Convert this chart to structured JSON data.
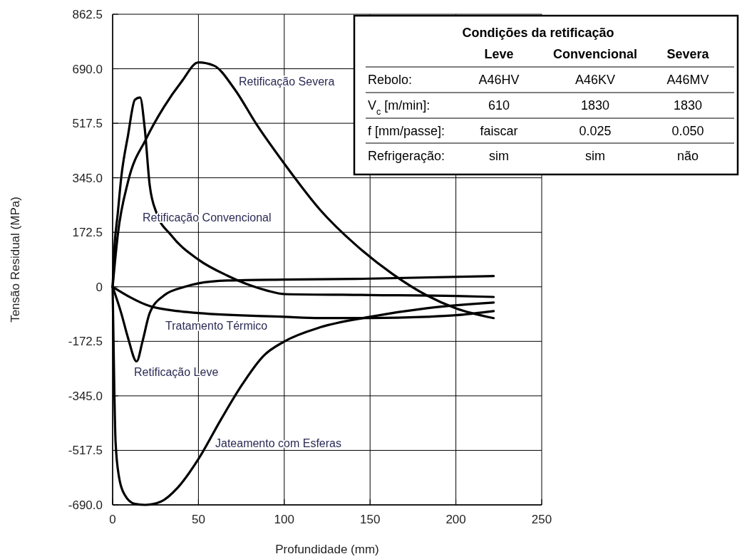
{
  "chart_data": [
    {
      "type": "line",
      "xlabel": "Profundidade (mm)",
      "ylabel": "Tensão Residual (MPa)",
      "xlim": [
        0,
        250
      ],
      "xticks": [
        0,
        50,
        100,
        150,
        200,
        250
      ],
      "ylim": [
        -690,
        862.5
      ],
      "yticks": [
        {
          "value": -690,
          "label": "-690.0"
        },
        -517.5,
        {
          "value": -345,
          "label": "-345.0"
        },
        -172.5,
        0,
        172.5,
        {
          "value": 345,
          "label": "345.0"
        },
        517.5,
        {
          "value": 690,
          "label": "690.0"
        },
        862.5
      ],
      "grid": true,
      "line_style": "solid",
      "marker": "none",
      "series": [
        {
          "name": "Retificação Severa",
          "color": "#000000",
          "x": [
            0,
            3,
            9,
            19.5,
            30,
            40,
            50,
            59,
            71,
            84,
            100,
            121,
            142,
            163,
            183,
            200,
            222
          ],
          "values": [
            0,
            164,
            333,
            468,
            570,
            648,
            710,
            700,
            626,
            513,
            390,
            243,
            131,
            41,
            -27,
            -68,
            -99
          ]
        },
        {
          "name": "Retificação Convencional",
          "color": "#000000",
          "x": [
            0,
            1,
            3,
            5,
            9,
            13,
            16,
            18.7,
            21.6,
            25.7,
            34,
            50,
            67,
            80,
            90,
            100,
            150,
            200,
            222
          ],
          "values": [
            0,
            120,
            232,
            345,
            480,
            592,
            599,
            502,
            322,
            232,
            164,
            86,
            35,
            5,
            -12,
            -23,
            -26,
            -29,
            -32
          ]
        },
        {
          "name": "Tratamento Térmico",
          "color": "#000000",
          "x": [
            0,
            21.6,
            38,
            50,
            100,
            121,
            150,
            183,
            200,
            222
          ],
          "values": [
            0,
            -61,
            -77,
            -83,
            -95,
            -99,
            -99,
            -95,
            -90,
            -77
          ]
        },
        {
          "name": "Retificação Leve",
          "color": "#000000",
          "x": [
            0,
            5,
            9,
            14,
            17.4,
            21.6,
            30,
            42,
            50,
            67,
            100,
            142,
            222
          ],
          "values": [
            0,
            -83,
            -162,
            -236,
            -173,
            -83,
            -27,
            0,
            11,
            20,
            23,
            25,
            34
          ]
        },
        {
          "name": "Jateamento com Esferas",
          "color": "#000000",
          "x": [
            0,
            1,
            1.7,
            3.7,
            7,
            13,
            19,
            28,
            38,
            50,
            63,
            75.5,
            88,
            100,
            121,
            150,
            183,
            222
          ],
          "values": [
            0,
            -331,
            -489,
            -601,
            -658,
            -687,
            -690,
            -680,
            -635,
            -545,
            -421,
            -309,
            -218,
            -173,
            -128,
            -95,
            -68,
            -50
          ]
        }
      ]
    },
    {
      "type": "other",
      "title": "Condições da retificação",
      "categories": [
        "Leve",
        "Convencional",
        "Severa"
      ],
      "y_categories": [
        "Rebolo:",
        "V$_{c}$ [m/min]:",
        "f [mm/passe]:",
        "Refrigeração:"
      ],
      "cell_labels": [
        [
          "A46HV",
          "A46KV",
          "A46MV"
        ],
        [
          "610",
          "1830",
          "1830"
        ],
        [
          "faiscar",
          "0.025",
          "0.050"
        ],
        [
          "sim",
          "sim",
          "não"
        ]
      ]
    }
  ]
}
